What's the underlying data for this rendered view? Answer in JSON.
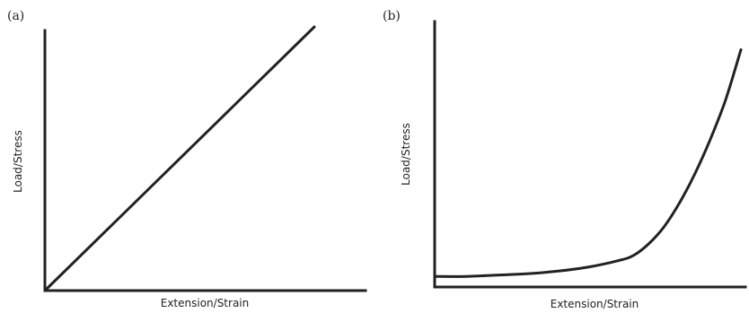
{
  "chart_data": [
    {
      "panel_label": "(a)",
      "type": "line",
      "xlabel": "Extension/Strain",
      "ylabel": "Load/Stress",
      "xlim": [
        0,
        1
      ],
      "ylim": [
        0,
        1
      ],
      "grid": false,
      "series": [
        {
          "x": [
            0,
            1
          ],
          "y": [
            0,
            1
          ]
        }
      ]
    },
    {
      "panel_label": "(b)",
      "type": "line",
      "xlabel": "Extension/Strain",
      "ylabel": "Load/Stress",
      "xlim": [
        0,
        1
      ],
      "ylim": [
        0,
        1
      ],
      "grid": false,
      "series": [
        {
          "x": [
            0,
            0.1,
            0.2,
            0.3,
            0.4,
            0.5,
            0.6,
            0.65,
            0.7,
            0.75,
            0.8,
            0.85,
            0.9,
            0.95,
            1.0
          ],
          "y": [
            0.04,
            0.04,
            0.045,
            0.05,
            0.06,
            0.075,
            0.1,
            0.12,
            0.165,
            0.23,
            0.32,
            0.43,
            0.56,
            0.71,
            0.9
          ]
        }
      ]
    }
  ]
}
